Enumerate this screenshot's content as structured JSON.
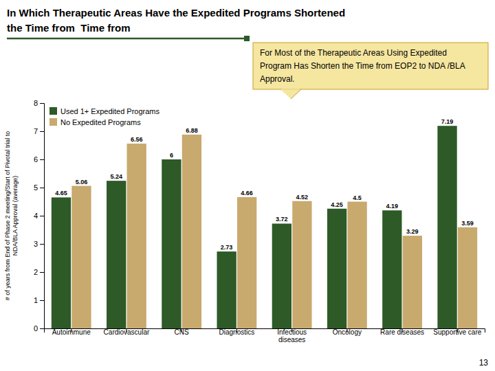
{
  "chart_data": {
    "type": "bar",
    "title": "In Which Therapeutic Areas Have the Expedited Programs Shortened",
    "subtitle": "the Time from  Time from",
    "ylabel": "# of years from End of Phase 2 meeting/Start of Pivotal trial to\nNDA/BLA Approval (average)",
    "categories": [
      "Autoimmune",
      "Cardiovascular",
      "CNS",
      "Diagnostics",
      "Infectious\ndiseases",
      "Oncology",
      "Rare diseases",
      "Supportive care"
    ],
    "series": [
      {
        "name": "Used 1+ Expedited Programs",
        "color": "#2d5a27",
        "values": [
          4.65,
          5.24,
          6,
          2.73,
          3.72,
          4.25,
          4.19,
          7.19
        ]
      },
      {
        "name": "No Expedited Programs",
        "color": "#c8a96e",
        "values": [
          5.06,
          6.56,
          6.88,
          4.66,
          4.52,
          4.5,
          3.29,
          3.59
        ]
      }
    ],
    "ylim": [
      0,
      8
    ],
    "yticks": [
      0,
      1,
      2,
      3,
      4,
      5,
      6,
      7,
      8
    ],
    "grid": false,
    "legend": "upper left",
    "data_labels": true,
    "annotations": [
      "For Most of the Therapeutic Areas Using Expedited\nProgram Has Shorten the Time from EOP2 to NDA /BLA\nApproval.",
      "13"
    ]
  }
}
